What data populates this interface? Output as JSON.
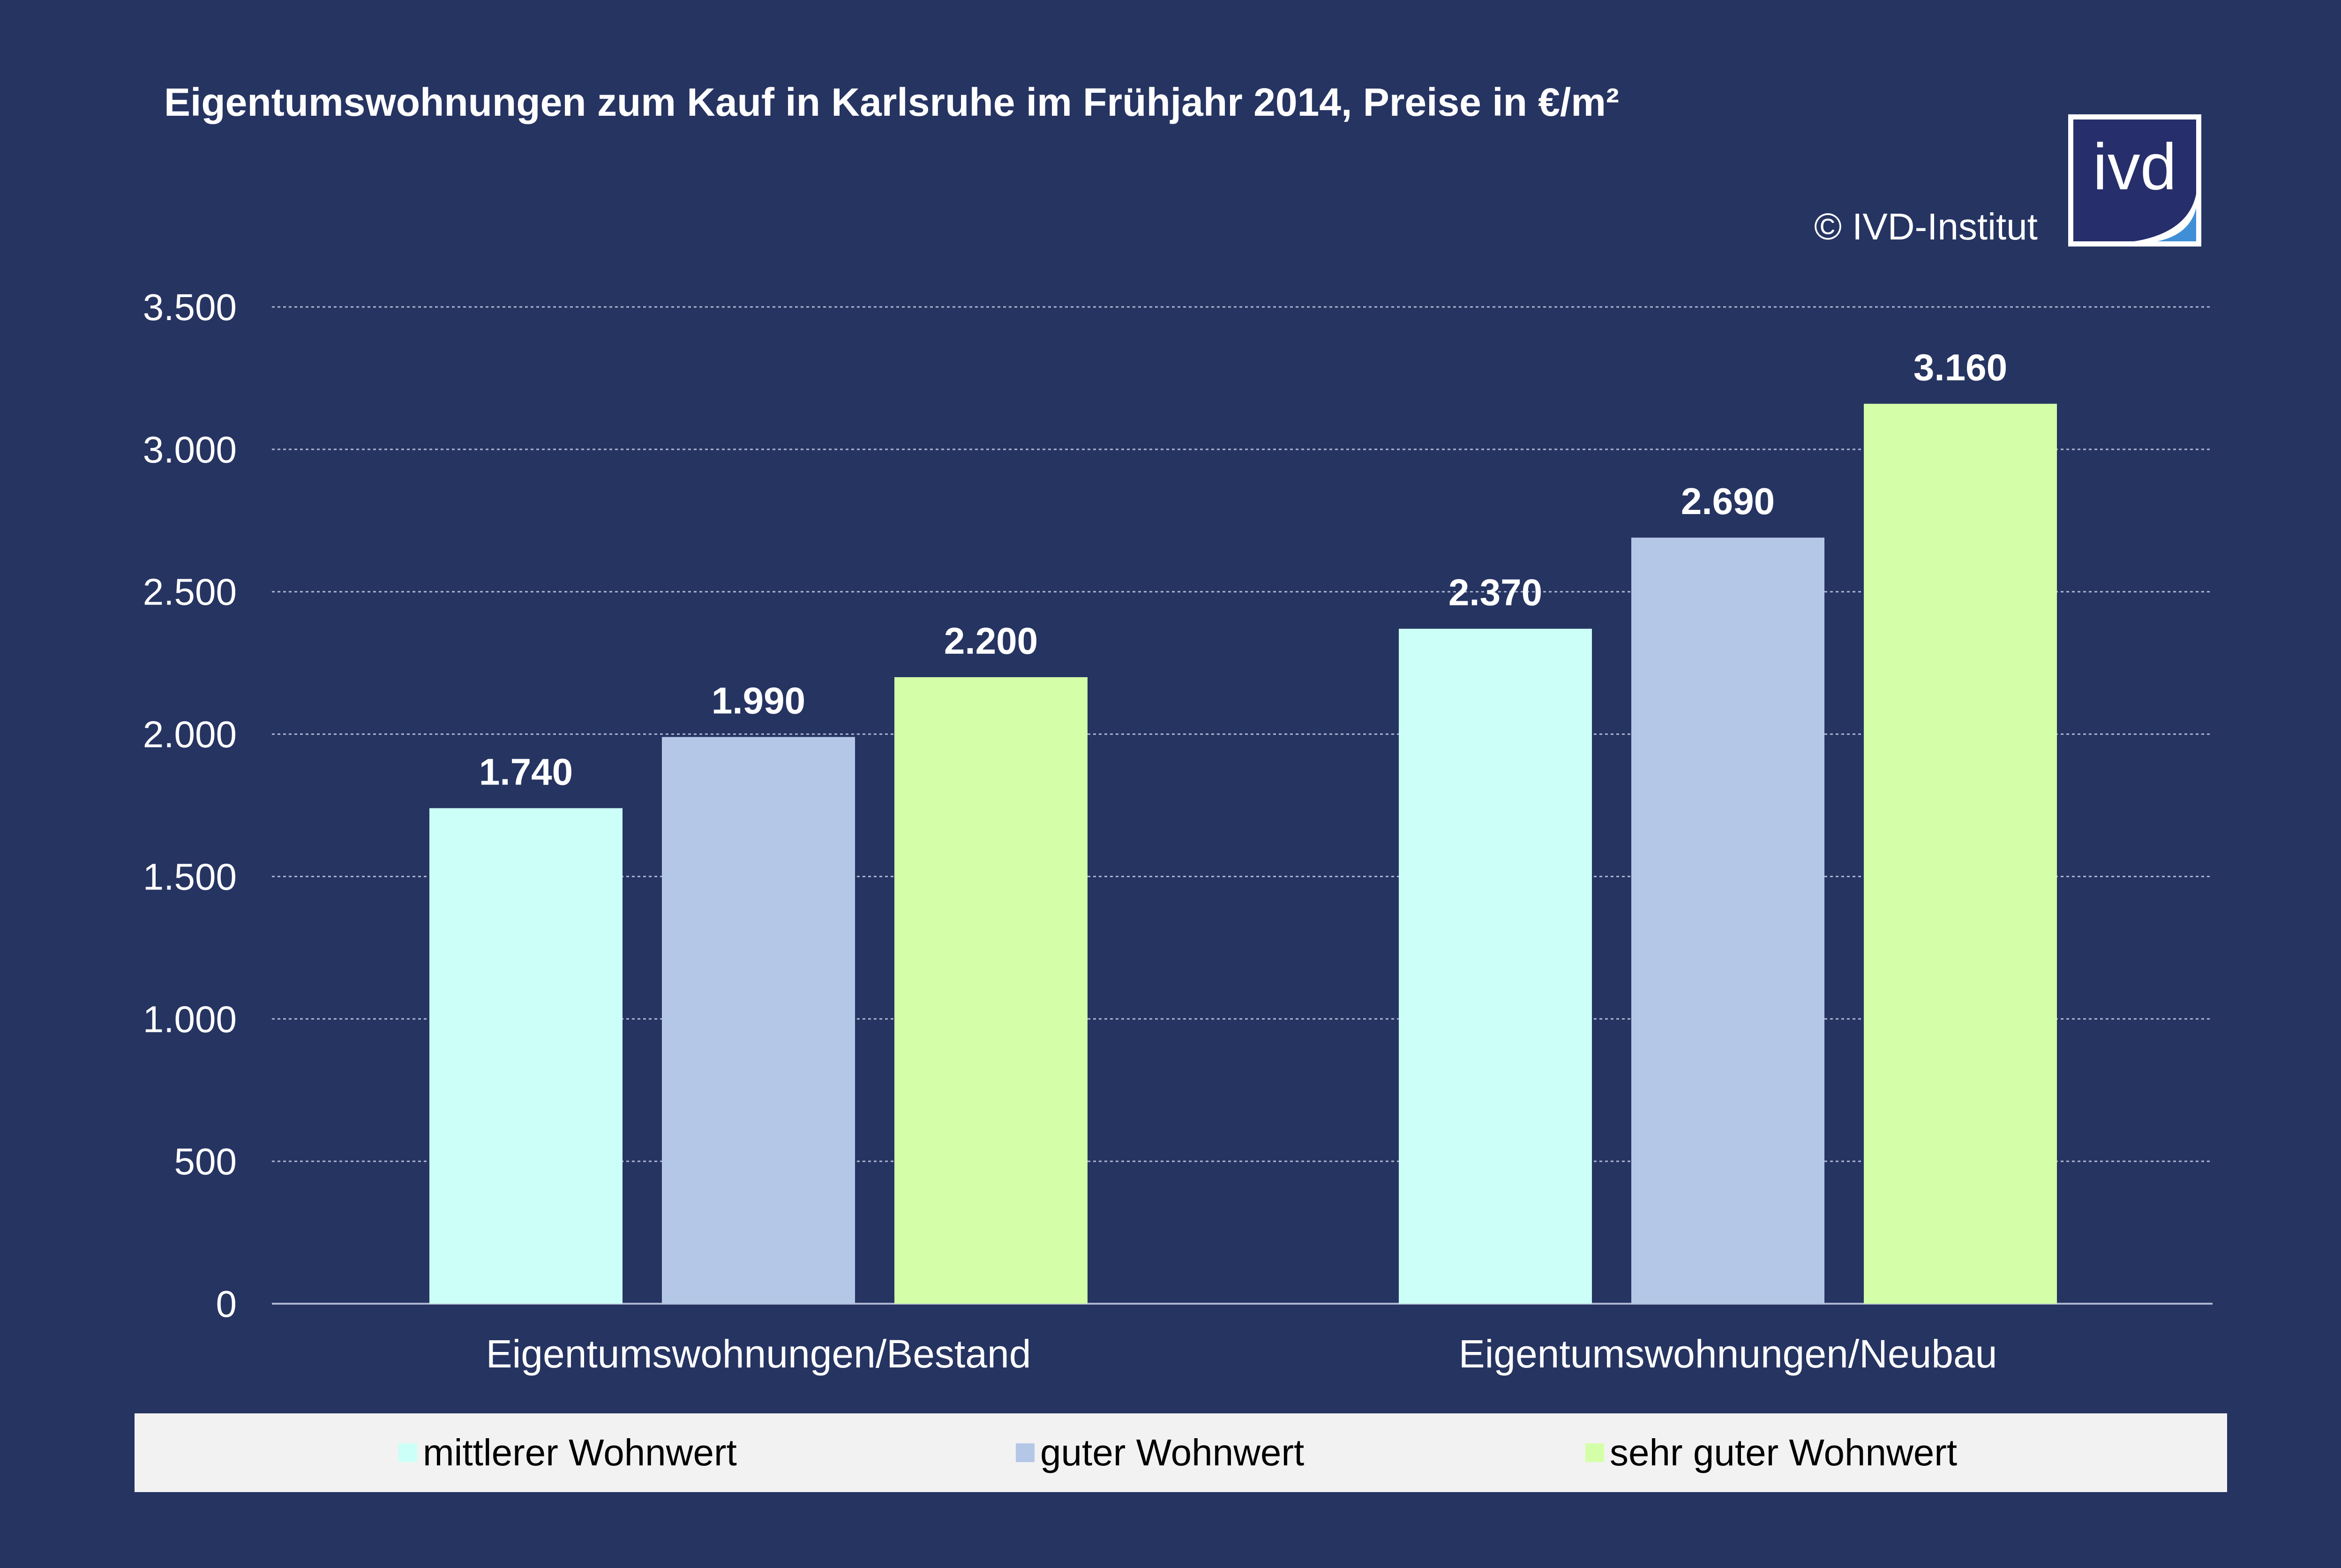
{
  "header": {
    "title": "Eigentumswohnungen zum Kauf in Karlsruhe im Frühjahr 2014, Preise in €/m²",
    "copyright": "© IVD-Institut",
    "logo_text": "ivd"
  },
  "colors": {
    "background": "#263462",
    "series": [
      "#ccfff7",
      "#b4c7e7",
      "#d4ffa8"
    ],
    "gridline": "#aeb6cf",
    "logo_fill": "#262e6b",
    "logo_accent": "#3f8fd6"
  },
  "chart_data": {
    "type": "bar",
    "title": "Eigentumswohnungen zum Kauf in Karlsruhe im Frühjahr 2014, Preise in €/m²",
    "categories": [
      "Eigentumswohnungen/Bestand",
      "Eigentumswohnungen/Neubau"
    ],
    "series": [
      {
        "name": "mittlerer Wohnwert",
        "values": [
          1740,
          2370
        ],
        "labels": [
          "1.740",
          "2.370"
        ]
      },
      {
        "name": "guter Wohnwert",
        "values": [
          1990,
          2690
        ],
        "labels": [
          "1.990",
          "2.690"
        ]
      },
      {
        "name": "sehr guter Wohnwert",
        "values": [
          2200,
          3160
        ],
        "labels": [
          "2.200",
          "3.160"
        ]
      }
    ],
    "ylim": [
      0,
      3500
    ],
    "yticks": [
      0,
      500,
      1000,
      1500,
      2000,
      2500,
      3000,
      3500
    ],
    "ytick_labels": [
      "0",
      "500",
      "1.000",
      "1.500",
      "2.000",
      "2.500",
      "3.000",
      "3.500"
    ],
    "grid": true,
    "legend_position": "bottom",
    "xlabel": "",
    "ylabel": ""
  }
}
